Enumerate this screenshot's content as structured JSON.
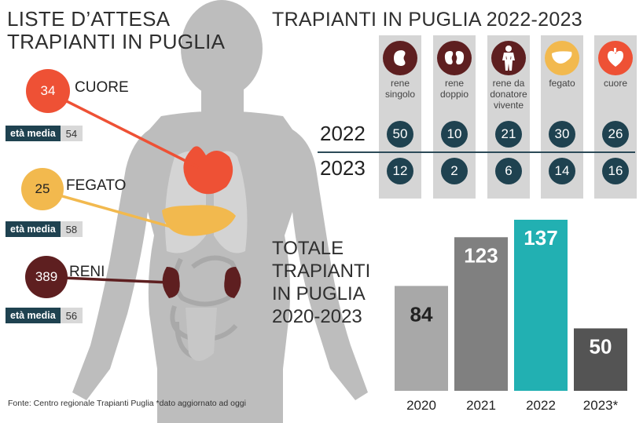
{
  "waiting_lists": {
    "title_lines": [
      "LISTE D’ATTESA",
      "TRAPIANTI IN PUGLIA"
    ],
    "items": [
      {
        "organ": "CUORE",
        "count": "34",
        "eta_label": "età media",
        "eta_value": "54",
        "color": "#ee5135"
      },
      {
        "organ": "FEGATO",
        "count": "25",
        "eta_label": "età media",
        "eta_value": "58",
        "color": "#f2b94e"
      },
      {
        "organ": "RENI",
        "count": "389",
        "eta_label": "età media",
        "eta_value": "56",
        "color": "#5e1f20"
      }
    ]
  },
  "transplants_by_organ": {
    "title": "TRAPIANTI IN PUGLIA 2022-2023",
    "organs": [
      {
        "name_lines": [
          "rene",
          "singolo"
        ],
        "icon": "kidney-icon",
        "icon_color": "#5e1f20"
      },
      {
        "name_lines": [
          "rene",
          "doppio"
        ],
        "icon": "kidneys-icon",
        "icon_color": "#5e1f20"
      },
      {
        "name_lines": [
          "rene da",
          "donatore",
          "vivente"
        ],
        "icon": "human-body-icon",
        "icon_color": "#5e1f20"
      },
      {
        "name_lines": [
          "fegato"
        ],
        "icon": "liver-icon",
        "icon_color": "#f2b94e"
      },
      {
        "name_lines": [
          "cuore"
        ],
        "icon": "heart-icon",
        "icon_color": "#ee5135"
      }
    ],
    "years": [
      {
        "year": "2022",
        "values": [
          "50",
          "10",
          "21",
          "30",
          "26"
        ]
      },
      {
        "year": "2023",
        "values": [
          "12",
          "2",
          "6",
          "14",
          "16"
        ]
      }
    ]
  },
  "chart_data": {
    "type": "bar",
    "title_lines": [
      "TOTALE",
      "TRAPIANTI",
      "IN PUGLIA",
      "2020-2023"
    ],
    "categories": [
      "2020",
      "2021",
      "2022",
      "2023*"
    ],
    "values": [
      84,
      123,
      137,
      50
    ],
    "colors": [
      "#a8a8a8",
      "#808080",
      "#22b0b2",
      "#545454"
    ],
    "value_colors": [
      "#222222",
      "#ffffff",
      "#ffffff",
      "#ffffff"
    ]
  },
  "source": "Fonte: Centro regionale Trapianti Puglia *dato aggiornato ad oggi"
}
